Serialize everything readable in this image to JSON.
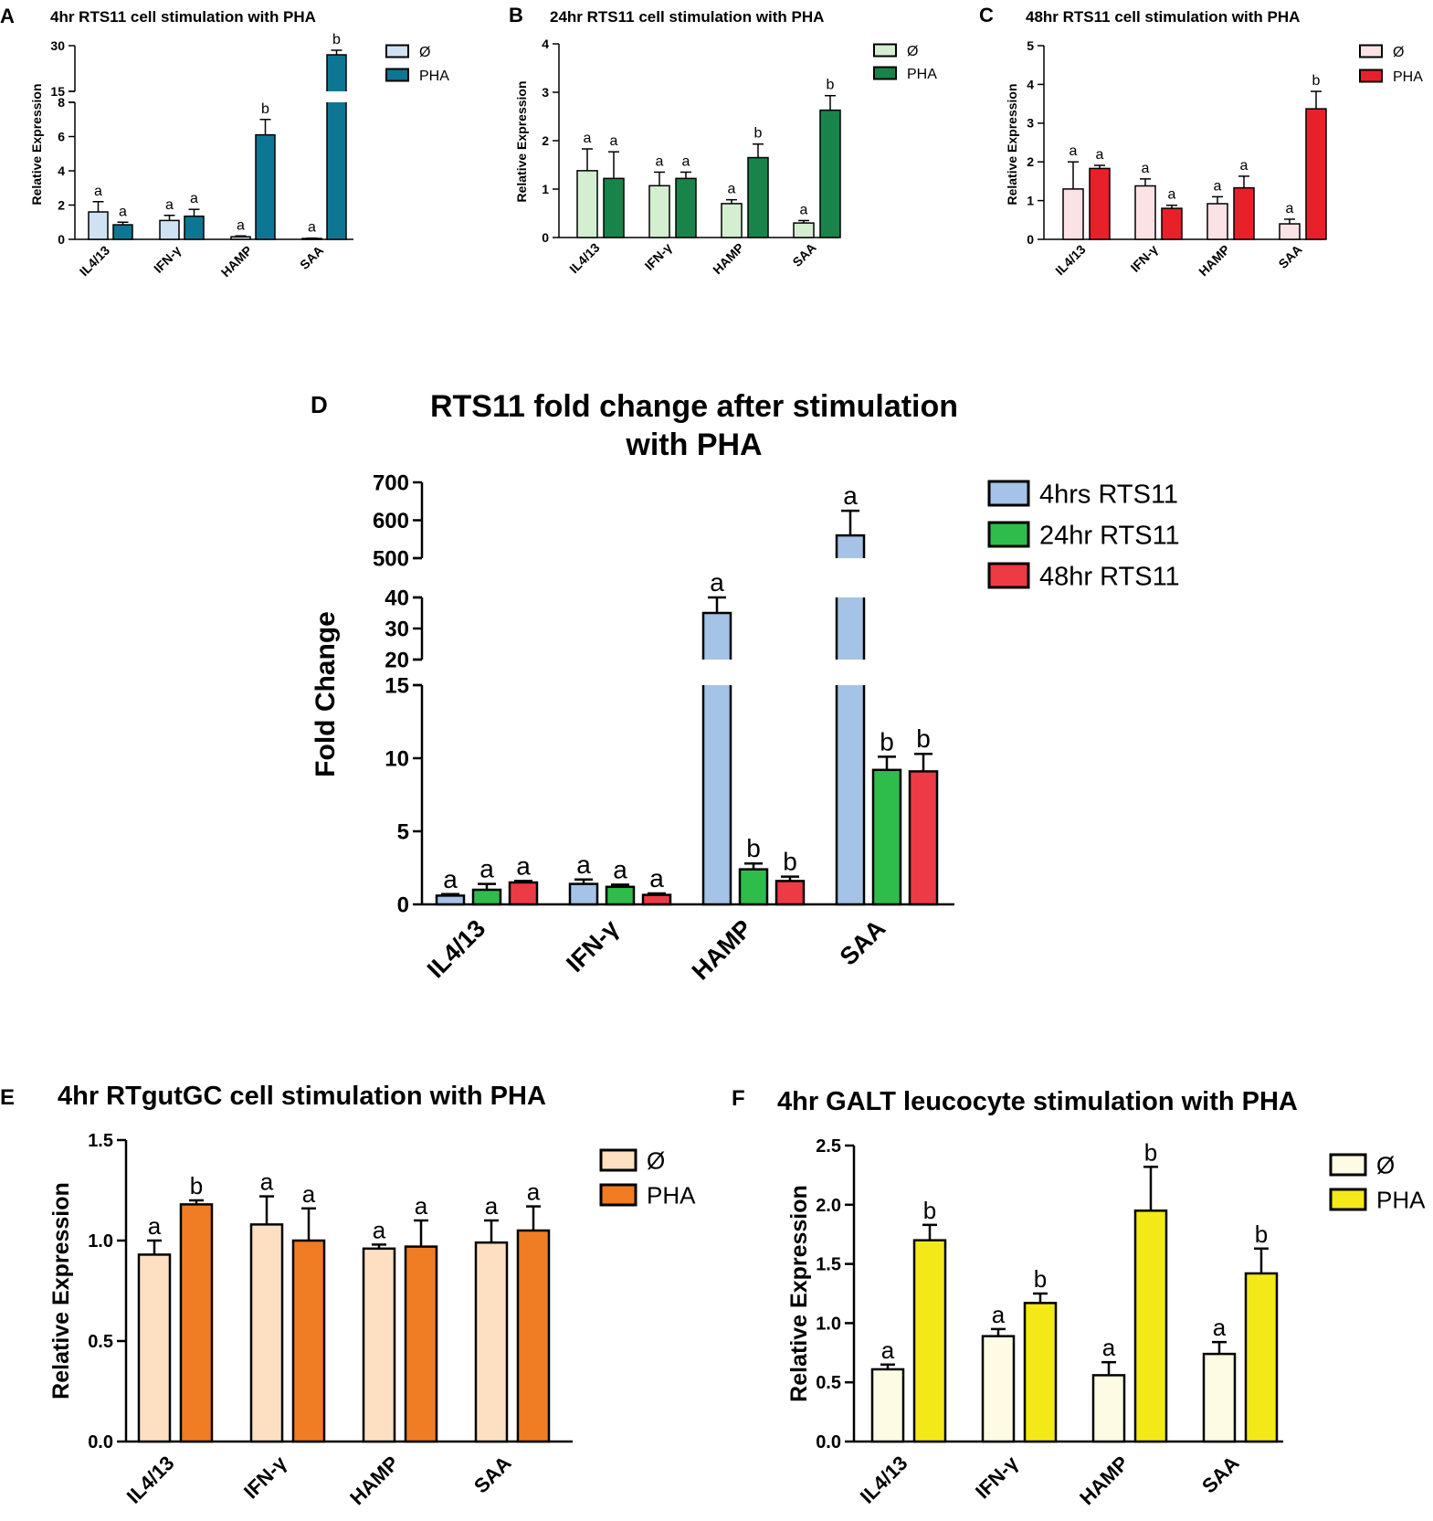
{
  "chart_data": [
    {
      "id": "A",
      "type": "bar",
      "panel_label": "A",
      "title": "4hr RTS11 cell stimulation with PHA",
      "ylabel": "Relative Expression",
      "categories": [
        "IL4/13",
        "IFN-γ",
        "HAMP",
        "SAA"
      ],
      "axis_break": {
        "lower": [
          0,
          8
        ],
        "upper": [
          15,
          30
        ]
      },
      "yticks_lower": [
        0,
        2,
        4,
        6,
        8
      ],
      "yticks_upper": [
        15,
        30
      ],
      "series": [
        {
          "name": "Ø",
          "color": "#cfe2f3",
          "values": [
            1.6,
            1.1,
            0.15,
            0.05
          ],
          "errors": [
            0.6,
            0.3,
            0.05,
            0.02
          ],
          "letters": [
            "a",
            "a",
            "a",
            "a"
          ]
        },
        {
          "name": "PHA",
          "color": "#0d7793",
          "values": [
            0.85,
            1.35,
            6.1,
            27
          ],
          "errors": [
            0.15,
            0.4,
            0.9,
            1.5
          ],
          "letters": [
            "a",
            "a",
            "b",
            "b"
          ]
        }
      ],
      "legend": [
        "Ø",
        "PHA"
      ]
    },
    {
      "id": "B",
      "type": "bar",
      "panel_label": "B",
      "title": "24hr RTS11 cell stimulation with PHA",
      "ylabel": "Relative Expression",
      "categories": [
        "IL4/13",
        "IFN-γ",
        "HAMP",
        "SAA"
      ],
      "ylim": [
        0,
        4
      ],
      "yticks": [
        0,
        1,
        2,
        3,
        4
      ],
      "series": [
        {
          "name": "Ø",
          "color": "#d4eed0",
          "values": [
            1.38,
            1.07,
            0.7,
            0.3
          ],
          "errors": [
            0.45,
            0.28,
            0.08,
            0.05
          ],
          "letters": [
            "a",
            "a",
            "a",
            "a"
          ]
        },
        {
          "name": "PHA",
          "color": "#18844a",
          "values": [
            1.22,
            1.22,
            1.65,
            2.63
          ],
          "errors": [
            0.55,
            0.13,
            0.28,
            0.3
          ],
          "letters": [
            "a",
            "a",
            "b",
            "b"
          ]
        }
      ],
      "legend": [
        "Ø",
        "PHA"
      ]
    },
    {
      "id": "C",
      "type": "bar",
      "panel_label": "C",
      "title": "48hr RTS11 cell stimulation with PHA",
      "ylabel": "Relative Expression",
      "categories": [
        "IL4/13",
        "IFN-γ",
        "HAMP",
        "SAA"
      ],
      "ylim": [
        0,
        5
      ],
      "yticks": [
        0,
        1,
        2,
        3,
        4,
        5
      ],
      "series": [
        {
          "name": "Ø",
          "color": "#fbe2e4",
          "values": [
            1.3,
            1.38,
            0.92,
            0.4
          ],
          "errors": [
            0.7,
            0.18,
            0.18,
            0.12
          ],
          "letters": [
            "a",
            "a",
            "a",
            "a"
          ]
        },
        {
          "name": "PHA",
          "color": "#e8202a",
          "values": [
            1.83,
            0.8,
            1.33,
            3.37
          ],
          "errors": [
            0.08,
            0.08,
            0.3,
            0.45
          ],
          "letters": [
            "a",
            "a",
            "a",
            "b"
          ]
        }
      ],
      "legend": [
        "Ø",
        "PHA"
      ]
    },
    {
      "id": "D",
      "type": "bar",
      "panel_label": "D",
      "title": "RTS11 fold change after stimulation",
      "title_line2": "with PHA",
      "ylabel": "Fold Change",
      "categories": [
        "IL4/13",
        "IFN-γ",
        "HAMP",
        "SAA"
      ],
      "axis_break": {
        "lower": [
          0,
          15
        ],
        "middle": [
          20,
          40
        ],
        "upper": [
          500,
          700
        ]
      },
      "yticks_lower": [
        0,
        5,
        10,
        15
      ],
      "yticks_middle": [
        20,
        30,
        40
      ],
      "yticks_upper": [
        500,
        600,
        700
      ],
      "series": [
        {
          "name": "4hrs RTS11",
          "color": "#a4c3e6",
          "values": [
            0.6,
            1.4,
            35,
            560
          ],
          "errors": [
            0.1,
            0.3,
            5,
            65
          ],
          "letters": [
            "a",
            "a",
            "a",
            "a"
          ]
        },
        {
          "name": "24hr RTS11",
          "color": "#2ebd4b",
          "values": [
            1.0,
            1.2,
            2.4,
            9.2
          ],
          "errors": [
            0.4,
            0.15,
            0.4,
            0.9
          ],
          "letters": [
            "a",
            "a",
            "b",
            "b"
          ]
        },
        {
          "name": "48hr RTS11",
          "color": "#ee3a44",
          "values": [
            1.5,
            0.65,
            1.6,
            9.1
          ],
          "errors": [
            0.1,
            0.1,
            0.3,
            1.2
          ],
          "letters": [
            "a",
            "a",
            "b",
            "b"
          ]
        }
      ],
      "legend": [
        "4hrs RTS11",
        "24hr RTS11",
        "48hr RTS11"
      ]
    },
    {
      "id": "E",
      "type": "bar",
      "panel_label": "E",
      "title": "4hr RTgutGC cell stimulation with PHA",
      "ylabel": "Relative Expression",
      "categories": [
        "IL4/13",
        "IFN-γ",
        "HAMP",
        "SAA"
      ],
      "ylim": [
        0,
        1.5
      ],
      "yticks": [
        "0.0",
        "0.5",
        "1.0",
        "1.5"
      ],
      "series": [
        {
          "name": "Ø",
          "color": "#fde0c2",
          "values": [
            0.93,
            1.08,
            0.96,
            0.99
          ],
          "errors": [
            0.07,
            0.14,
            0.02,
            0.11
          ],
          "letters": [
            "a",
            "a",
            "a",
            "a"
          ]
        },
        {
          "name": "PHA",
          "color": "#f07c23",
          "values": [
            1.18,
            1.0,
            0.97,
            1.05
          ],
          "errors": [
            0.02,
            0.16,
            0.13,
            0.12
          ],
          "letters": [
            "b",
            "a",
            "a",
            "a"
          ]
        }
      ],
      "legend": [
        "Ø",
        "PHA"
      ]
    },
    {
      "id": "F",
      "type": "bar",
      "panel_label": "F",
      "title": "4hr GALT leucocyte stimulation with PHA",
      "ylabel": "Relative Expression",
      "categories": [
        "IL4/13",
        "IFN-γ",
        "HAMP",
        "SAA"
      ],
      "ylim": [
        0,
        2.5
      ],
      "yticks": [
        "0.0",
        "0.5",
        "1.0",
        "1.5",
        "2.0",
        "2.5"
      ],
      "series": [
        {
          "name": "Ø",
          "color": "#fdfbe4",
          "values": [
            0.61,
            0.89,
            0.56,
            0.74
          ],
          "errors": [
            0.04,
            0.06,
            0.11,
            0.1
          ],
          "letters": [
            "a",
            "a",
            "a",
            "a"
          ]
        },
        {
          "name": "PHA",
          "color": "#f3e919",
          "values": [
            1.7,
            1.17,
            1.95,
            1.42
          ],
          "errors": [
            0.13,
            0.08,
            0.37,
            0.21
          ],
          "letters": [
            "b",
            "b",
            "b",
            "b"
          ]
        }
      ],
      "legend": [
        "Ø",
        "PHA"
      ]
    }
  ]
}
